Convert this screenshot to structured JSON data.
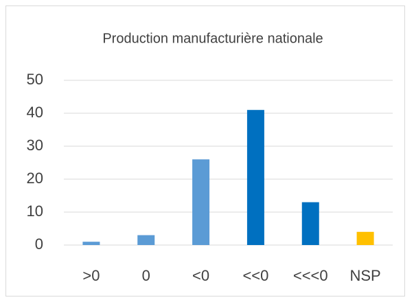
{
  "chart_data": {
    "type": "bar",
    "title": "Production manufacturière nationale",
    "categories": [
      ">0",
      "0",
      "<0",
      "<<0",
      "<<<0",
      "NSP"
    ],
    "values": [
      1,
      3,
      26,
      41,
      13,
      4
    ],
    "colors": [
      "#5b9bd5",
      "#5b9bd5",
      "#5b9bd5",
      "#0070c0",
      "#0070c0",
      "#ffc000"
    ],
    "ylim": [
      0,
      50
    ],
    "yticks": [
      0,
      10,
      20,
      30,
      40,
      50
    ],
    "grid": true
  }
}
